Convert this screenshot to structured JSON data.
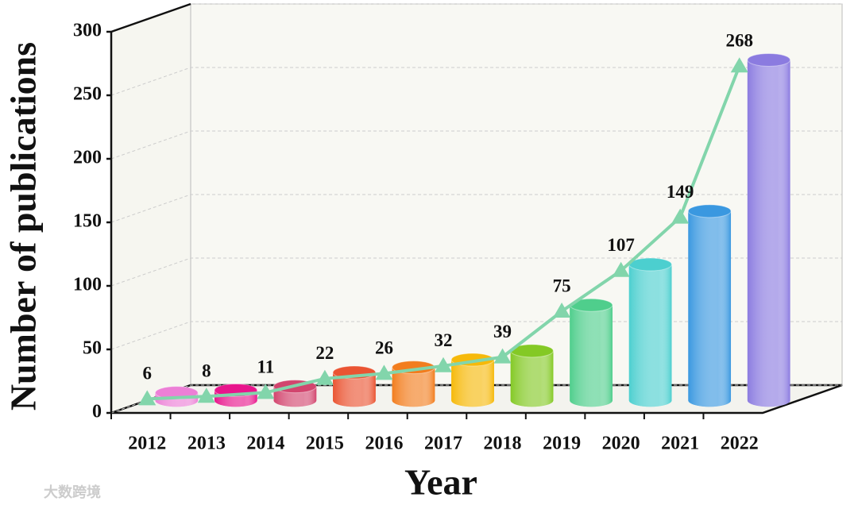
{
  "chart_data": {
    "type": "bar",
    "y_axis_label": "Number of publications",
    "x_axis_label": "Year",
    "categories": [
      "2012",
      "2013",
      "2014",
      "2015",
      "2016",
      "2017",
      "2018",
      "2019",
      "2020",
      "2021",
      "2022"
    ],
    "values": [
      6,
      8,
      11,
      22,
      26,
      32,
      39,
      75,
      107,
      149,
      268
    ],
    "colors": [
      "#ec7fd6",
      "#e8158c",
      "#d2456e",
      "#ea5432",
      "#f27d1e",
      "#f6b90a",
      "#84c925",
      "#4fce8c",
      "#4ccfcf",
      "#3a98e0",
      "#8b7be0"
    ],
    "trend_color": "#82d5ab",
    "ylim": [
      0,
      300
    ],
    "yticks": [
      0,
      50,
      100,
      150,
      200,
      250,
      300
    ],
    "grid": true,
    "watermark": "大数跨境"
  }
}
